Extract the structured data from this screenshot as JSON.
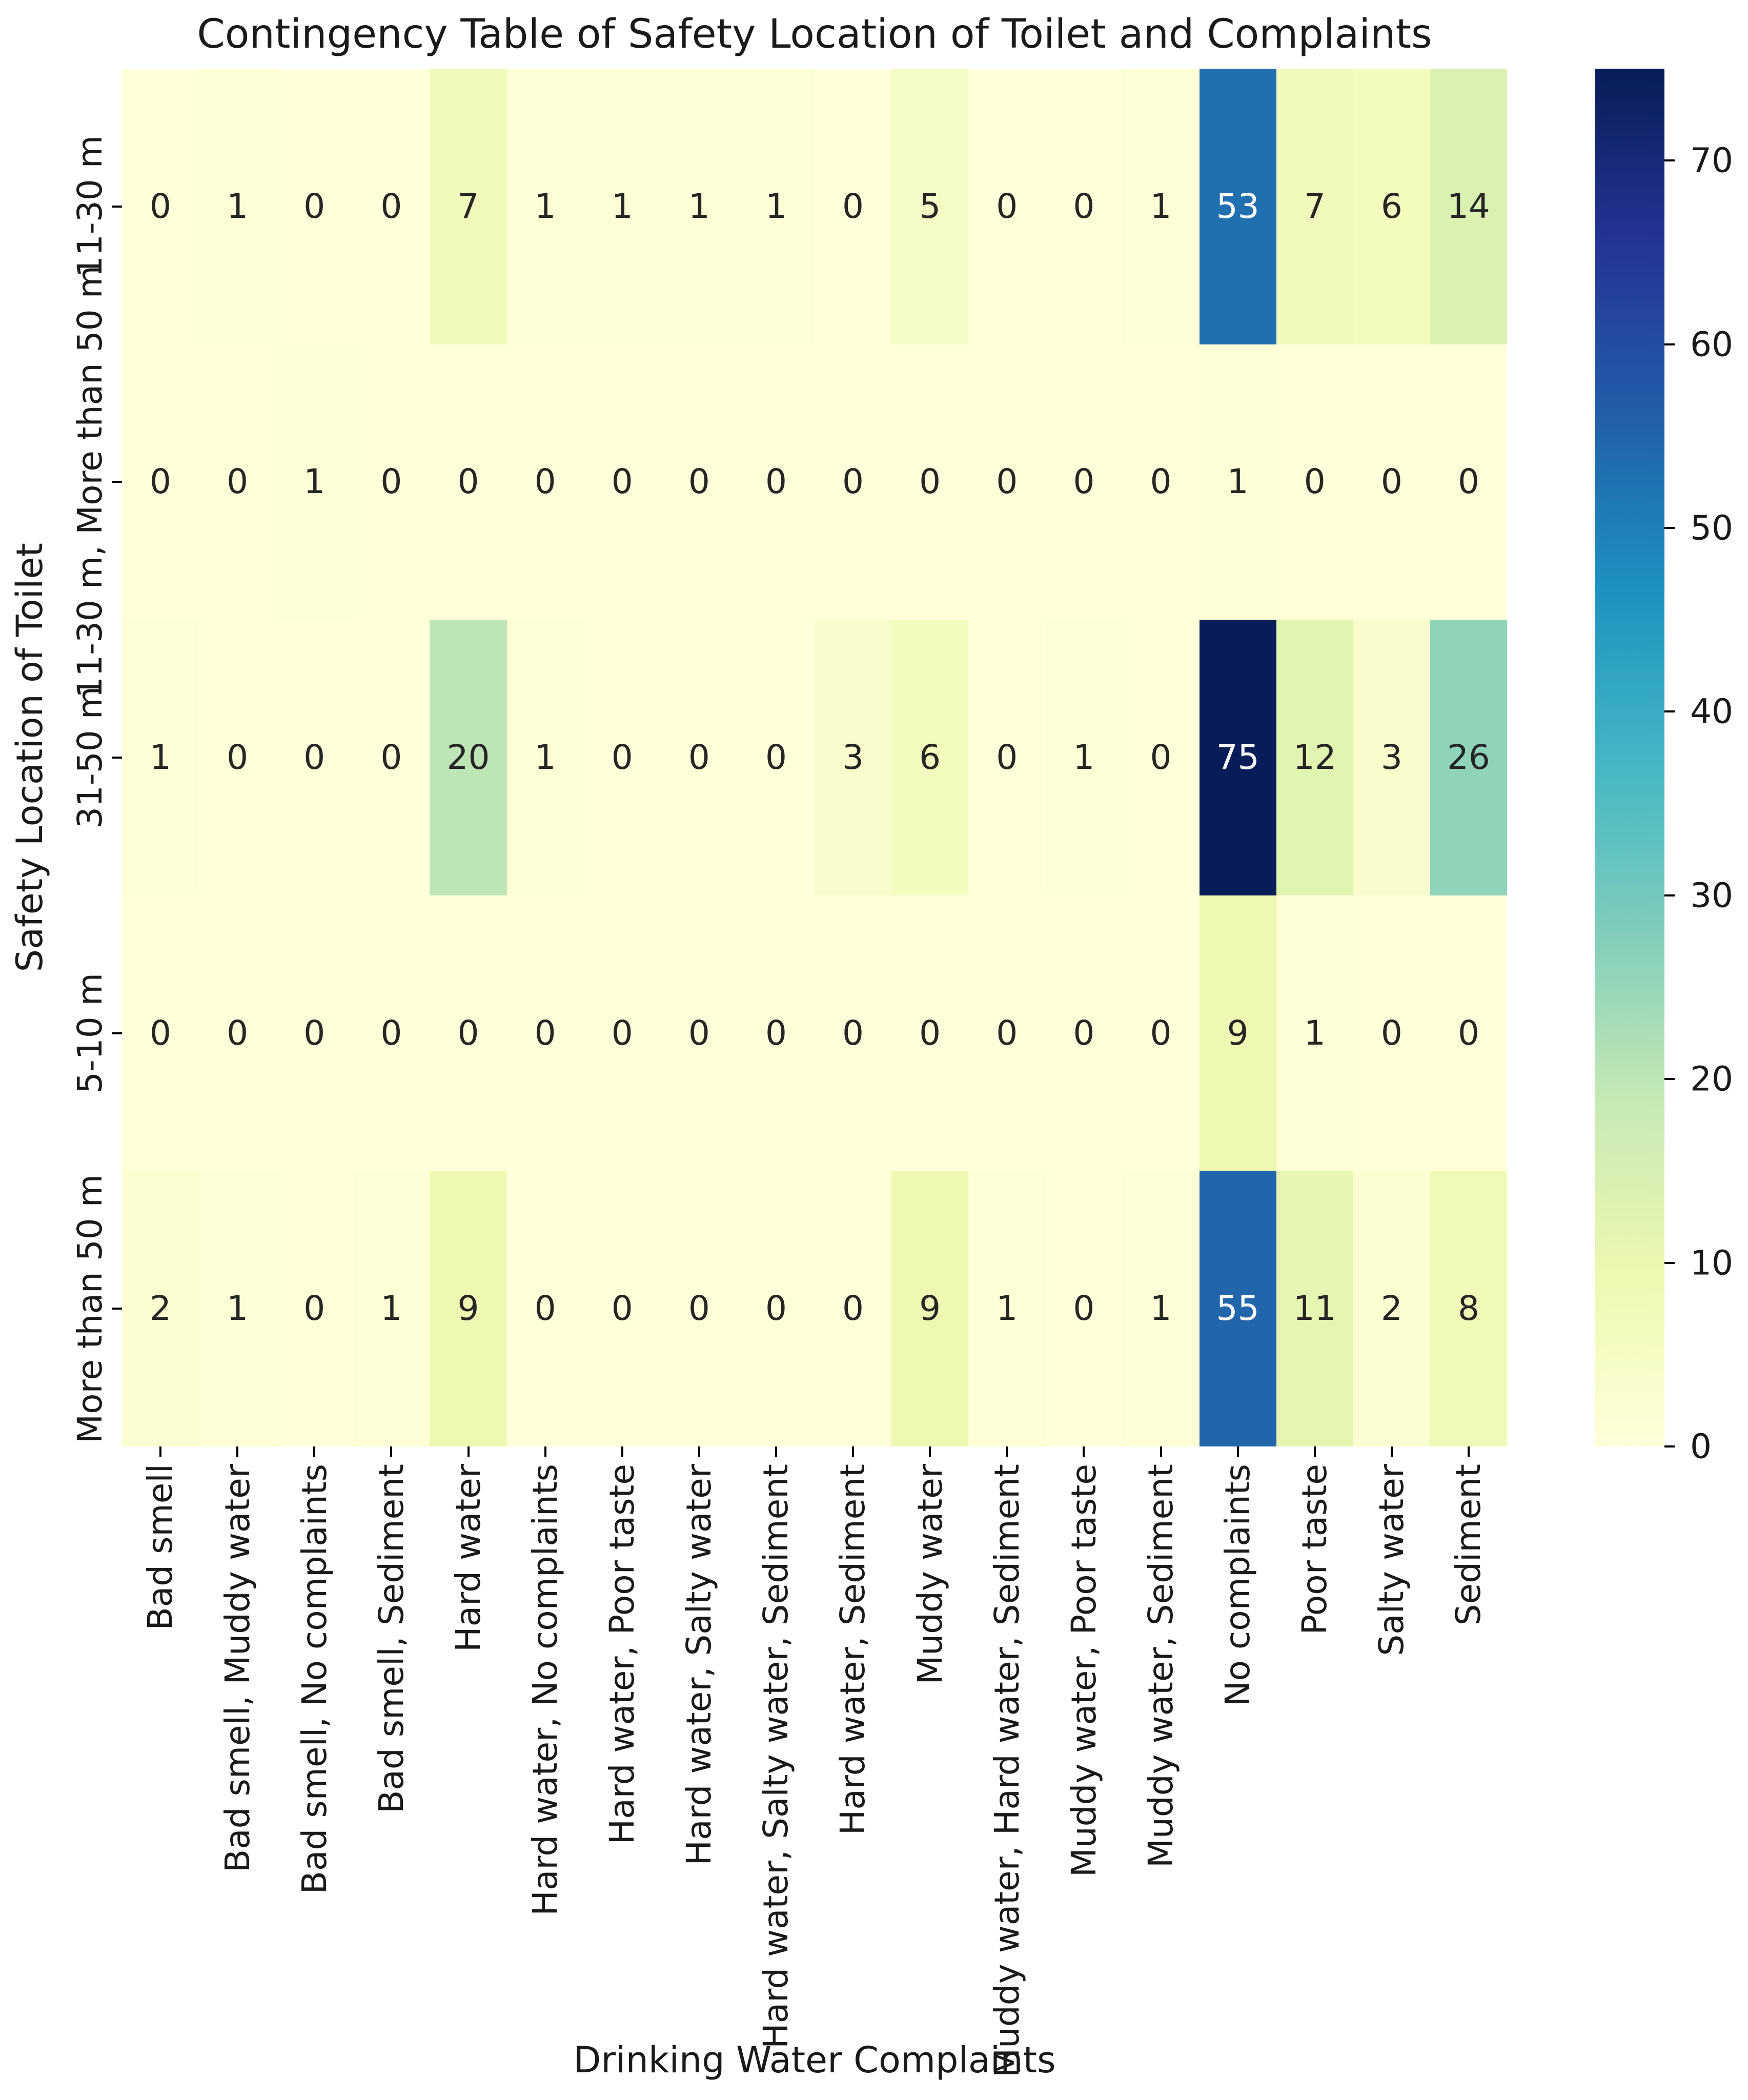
{
  "title": "Contingency Table of Safety Location of Toilet and Complaints",
  "chart_data": {
    "type": "heatmap",
    "title": "Contingency Table of Safety Location of Toilet and Complaints",
    "xlabel": "Drinking Water Complaints",
    "ylabel": "Safety Location of Toilet",
    "x_categories": [
      "Bad smell",
      "Bad smell, Muddy water",
      "Bad smell, No complaints",
      "Bad smell, Sediment",
      "Hard water",
      "Hard water, No complaints",
      "Hard water, Poor taste",
      "Hard water, Salty water",
      "Hard water, Salty water, Sediment",
      "Hard water, Sediment",
      "Muddy water",
      "Muddy water, Hard water, Sediment",
      "Muddy water, Poor taste",
      "Muddy water, Sediment",
      "No complaints",
      "Poor taste",
      "Salty water",
      "Sediment"
    ],
    "y_categories": [
      "11-30 m",
      "11-30 m, More than 50 m",
      "31-50 m",
      "5-10 m",
      "More than 50 m"
    ],
    "matrix": [
      [
        0,
        1,
        0,
        0,
        7,
        1,
        1,
        1,
        1,
        0,
        5,
        0,
        0,
        1,
        53,
        7,
        6,
        14
      ],
      [
        0,
        0,
        1,
        0,
        0,
        0,
        0,
        0,
        0,
        0,
        0,
        0,
        0,
        0,
        1,
        0,
        0,
        0
      ],
      [
        1,
        0,
        0,
        0,
        20,
        1,
        0,
        0,
        0,
        3,
        6,
        0,
        1,
        0,
        75,
        12,
        3,
        26
      ],
      [
        0,
        0,
        0,
        0,
        0,
        0,
        0,
        0,
        0,
        0,
        0,
        0,
        0,
        0,
        9,
        1,
        0,
        0
      ],
      [
        2,
        1,
        0,
        1,
        9,
        0,
        0,
        0,
        0,
        0,
        9,
        1,
        0,
        1,
        55,
        11,
        2,
        8
      ]
    ],
    "vmin": 0,
    "vmax": 75,
    "colormap": "YlGnBu",
    "colormap_stops": [
      {
        "pos": 0.0,
        "color": "#ffffd9"
      },
      {
        "pos": 0.125,
        "color": "#edf8b1"
      },
      {
        "pos": 0.25,
        "color": "#c7e9b4"
      },
      {
        "pos": 0.375,
        "color": "#7fcdbb"
      },
      {
        "pos": 0.5,
        "color": "#41b6c4"
      },
      {
        "pos": 0.625,
        "color": "#1d91c0"
      },
      {
        "pos": 0.75,
        "color": "#225ea8"
      },
      {
        "pos": 0.875,
        "color": "#253494"
      },
      {
        "pos": 1.0,
        "color": "#081d58"
      }
    ],
    "colorbar_ticks": [
      0,
      10,
      20,
      30,
      40,
      50,
      60,
      70
    ],
    "annotation_colors": {
      "on_light": "#262626",
      "on_dark": "#ffffff"
    },
    "grid": false,
    "legend_position": "right-colorbar"
  }
}
